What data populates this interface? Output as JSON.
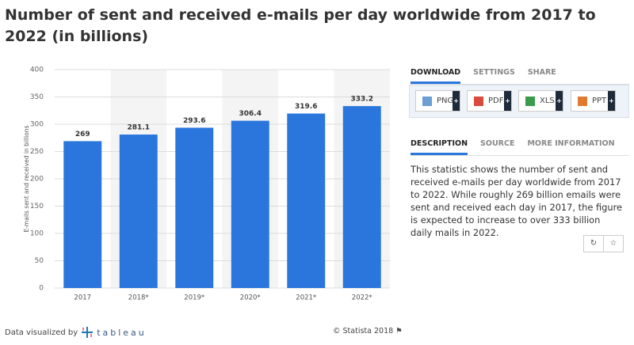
{
  "chart_data": {
    "type": "bar",
    "title": "Number of sent and received e-mails per day worldwide from 2017 to 2022 (in billions)",
    "y_label": "E-mails sent and received in billions",
    "categories": [
      "2017",
      "2018*",
      "2019*",
      "2020*",
      "2021*",
      "2022*"
    ],
    "values": [
      269,
      281.1,
      293.6,
      306.4,
      319.6,
      333.2
    ],
    "color": "#2a76dd",
    "ylim": [
      0,
      400
    ],
    "yticks": [
      0,
      50,
      100,
      150,
      200,
      250,
      300,
      350,
      400
    ],
    "grid": true
  },
  "download_tabs": [
    "DOWNLOAD",
    "SETTINGS",
    "SHARE"
  ],
  "download_buttons": [
    "PNG",
    "PDF",
    "XLS",
    "PPT"
  ],
  "info_tabs": [
    "DESCRIPTION",
    "SOURCE",
    "MORE INFORMATION"
  ],
  "description": "This statistic shows the number of sent and received e-mails per day worldwide from 2017 to 2022. While roughly 269 billion emails were sent and received each day in 2017, the figure is expected to increase to over 333 billion daily mails in 2022.",
  "footer": {
    "credit": "Data visualized by",
    "logo": "tableau",
    "copyright": "© Statista 2018"
  }
}
